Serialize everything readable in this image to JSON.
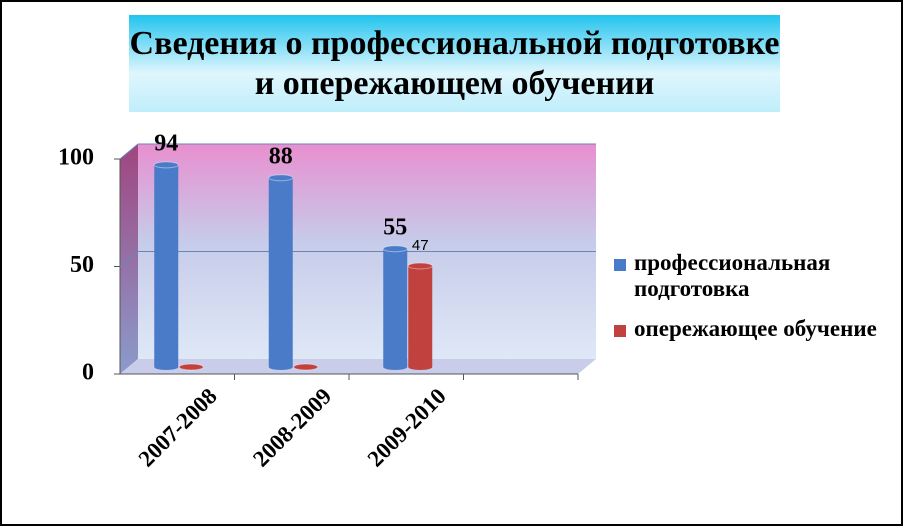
{
  "chart_data": {
    "type": "bar3d",
    "title": "Сведения о профессиональной подготовке и опережающем обучении",
    "categories": [
      "2007-2008",
      "2008-2009",
      "2009-2010",
      null
    ],
    "series": [
      {
        "name": "профессиональная подготовка",
        "color": "#4a7bc8",
        "values": [
          94,
          88,
          55,
          null
        ]
      },
      {
        "name": "опережающее обучение",
        "color": "#c0413e",
        "values": [
          0,
          0,
          47,
          null
        ]
      }
    ],
    "ylim": [
      0,
      100
    ],
    "yticks": [
      0,
      50,
      100
    ],
    "grid": true,
    "legend": "right"
  }
}
